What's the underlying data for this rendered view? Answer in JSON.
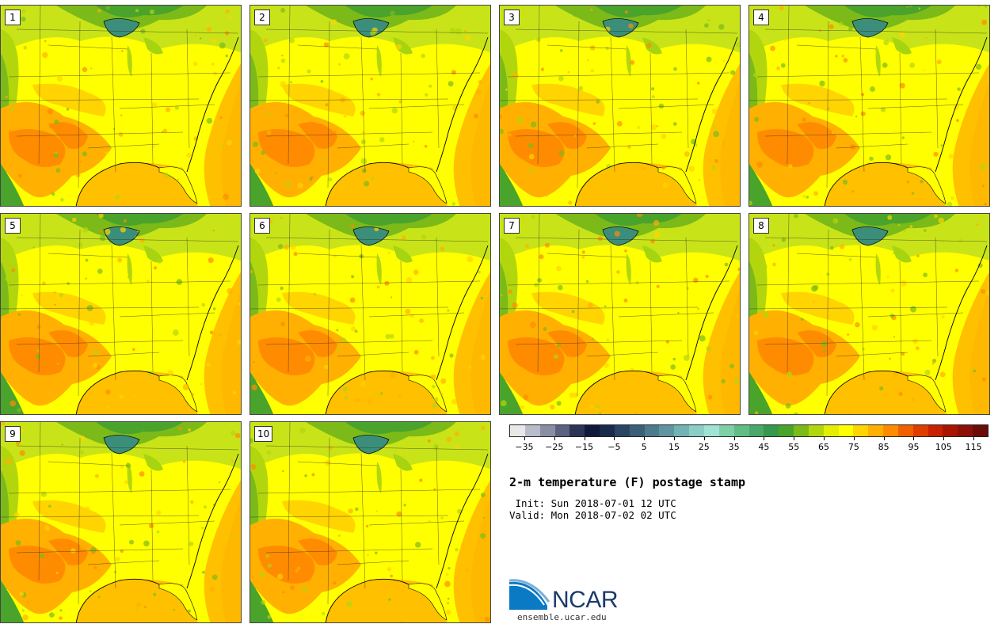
{
  "product": {
    "title": "2-m temperature (F) postage stamp",
    "init_line": " Init: Sun 2018-07-01 12 UTC",
    "valid_line": "Valid: Mon 2018-07-02 02 UTC"
  },
  "members": [
    "1",
    "2",
    "3",
    "4",
    "5",
    "6",
    "7",
    "8",
    "9",
    "10"
  ],
  "colorbar": {
    "colors": [
      "#e8e8e8",
      "#b9bccb",
      "#8a8ea5",
      "#5b627f",
      "#2c3556",
      "#0f1a3a",
      "#182b4c",
      "#2a4563",
      "#3b5f77",
      "#4e7b8c",
      "#5f95a0",
      "#72b3b6",
      "#8ccdc6",
      "#9fe3d6",
      "#7fd0a6",
      "#62bd85",
      "#4aa86a",
      "#36984c",
      "#4aa32b",
      "#7bba18",
      "#b2d60e",
      "#e4ee00",
      "#ffff00",
      "#ffd400",
      "#ffb000",
      "#ff8c00",
      "#f06000",
      "#e03c00",
      "#c82000",
      "#a81400",
      "#8c1008",
      "#6a0c08"
    ],
    "tick_labels": [
      "−35",
      "−25",
      "−15",
      "−5",
      "5",
      "15",
      "25",
      "35",
      "45",
      "55",
      "65",
      "75",
      "85",
      "95",
      "105",
      "115"
    ],
    "vmin": -40,
    "vmax": 120
  },
  "logo": {
    "org": "NCAR",
    "url": "ensemble.ucar.edu"
  }
}
